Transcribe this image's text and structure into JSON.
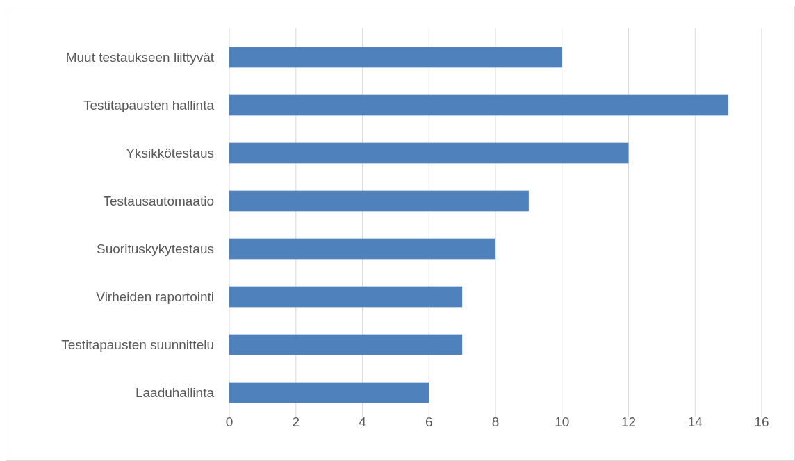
{
  "chart_data": {
    "type": "bar",
    "orientation": "horizontal",
    "categories": [
      "Muut testaukseen liittyvät",
      "Testitapausten hallinta",
      "Yksikkötestaus",
      "Testausautomaatio",
      "Suorituskykytestaus",
      "Virheiden raportointi",
      "Testitapausten suunnittelu",
      "Laaduhallinta"
    ],
    "values": [
      10,
      15,
      12,
      9,
      8,
      7,
      7,
      6
    ],
    "color": "#4f81bd",
    "xlim": [
      0,
      16
    ],
    "xticks": [
      0,
      2,
      4,
      6,
      8,
      10,
      12,
      14,
      16
    ],
    "grid": "x"
  }
}
